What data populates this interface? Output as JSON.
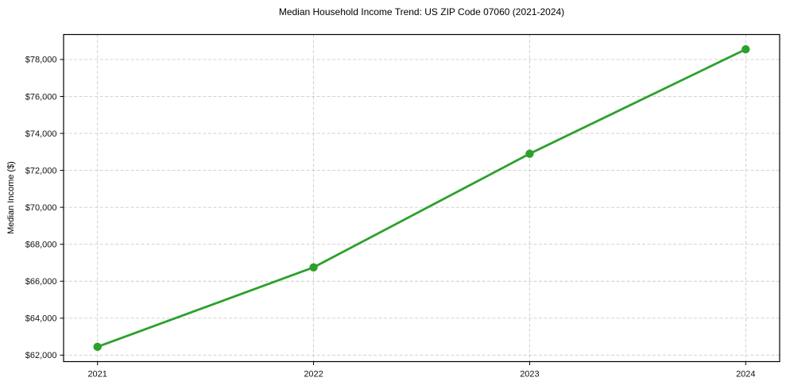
{
  "chart_data": {
    "type": "line",
    "title": "Median Household Income Trend: US ZIP Code 07060 (2021-2024)",
    "xlabel": "",
    "ylabel": "Median Income ($)",
    "x": [
      2021,
      2022,
      2023,
      2024
    ],
    "series": [
      {
        "values": [
          62450,
          66750,
          72900,
          78550
        ],
        "color": "#2ca02c",
        "marker": "circle",
        "line_width": 2.8,
        "marker_radius": 5.2
      }
    ],
    "xticks": {
      "values": [
        2021,
        2022,
        2023,
        2024
      ],
      "labels": [
        "2021",
        "2022",
        "2023",
        "2024"
      ]
    },
    "yticks": {
      "values": [
        62000,
        64000,
        66000,
        68000,
        70000,
        72000,
        74000,
        76000,
        78000
      ],
      "labels": [
        "$62,000",
        "$64,000",
        "$66,000",
        "$68,000",
        "$70,000",
        "$72,000",
        "$74,000",
        "$76,000",
        "$78,000"
      ]
    },
    "xlim": [
      2020.843,
      2024.157
    ],
    "ylim": [
      61650,
      79350
    ],
    "grid": {
      "visible": true,
      "style": "dashed",
      "color": "#cccccc"
    },
    "legend": {
      "visible": false
    },
    "spine_color": "#000000",
    "background_color": "#ffffff"
  }
}
